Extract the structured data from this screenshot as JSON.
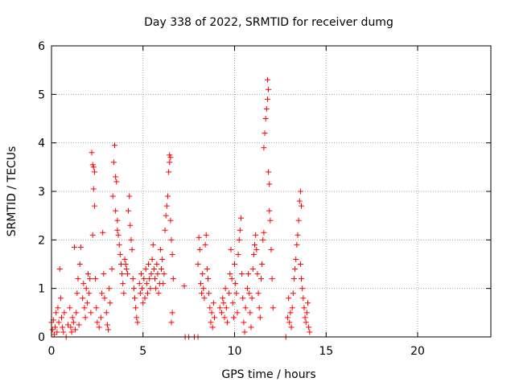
{
  "chart_data": {
    "type": "scatter",
    "title": "Day 338 of 2022, SRMTID for receiver dumg",
    "xlabel": "GPS time / hours",
    "ylabel": "SRMTID / TECUs",
    "xlim": [
      0,
      24
    ],
    "ylim": [
      0,
      6
    ],
    "x_ticks": [
      0,
      5,
      10,
      15,
      20
    ],
    "y_ticks": [
      0,
      1,
      2,
      3,
      4,
      5,
      6
    ],
    "grid": true,
    "marker": "+",
    "marker_color": "#ff0000",
    "series": [
      {
        "points": [
          [
            0.0,
            0.3
          ],
          [
            0.05,
            0.15
          ],
          [
            0.1,
            0.35
          ],
          [
            0.15,
            0.05
          ],
          [
            0.2,
            0.2
          ],
          [
            0.25,
            0.5
          ],
          [
            0.3,
            0.1
          ],
          [
            0.35,
            0.6
          ],
          [
            0.4,
            0.3
          ],
          [
            0.45,
            1.4
          ],
          [
            0.5,
            0.8
          ],
          [
            0.55,
            0.4
          ],
          [
            0.6,
            0.2
          ],
          [
            0.65,
            0.1
          ],
          [
            0.7,
            0.5
          ],
          [
            0.8,
            0.0
          ],
          [
            0.9,
            0.25
          ],
          [
            1.0,
            0.6
          ],
          [
            1.05,
            0.2
          ],
          [
            1.1,
            0.1
          ],
          [
            1.15,
            0.4
          ],
          [
            1.2,
            0.3
          ],
          [
            1.25,
            1.85
          ],
          [
            1.3,
            0.15
          ],
          [
            1.35,
            0.5
          ],
          [
            1.4,
            0.9
          ],
          [
            1.45,
            1.2
          ],
          [
            1.5,
            0.25
          ],
          [
            1.55,
            1.5
          ],
          [
            1.6,
            1.85
          ],
          [
            1.7,
            0.8
          ],
          [
            1.75,
            1.1
          ],
          [
            1.8,
            0.6
          ],
          [
            1.85,
            0.4
          ],
          [
            1.9,
            1.0
          ],
          [
            1.95,
            0.7
          ],
          [
            2.0,
            1.3
          ],
          [
            2.05,
            0.9
          ],
          [
            2.1,
            1.2
          ],
          [
            2.15,
            0.5
          ],
          [
            2.2,
            3.8
          ],
          [
            2.25,
            3.55
          ],
          [
            2.3,
            3.5
          ],
          [
            2.35,
            3.4
          ],
          [
            2.3,
            3.05
          ],
          [
            2.35,
            2.7
          ],
          [
            2.25,
            2.1
          ],
          [
            2.4,
            1.2
          ],
          [
            2.45,
            0.6
          ],
          [
            2.5,
            0.3
          ],
          [
            2.6,
            0.2
          ],
          [
            2.7,
            0.4
          ],
          [
            2.75,
            0.9
          ],
          [
            2.8,
            2.15
          ],
          [
            2.85,
            1.3
          ],
          [
            2.9,
            0.8
          ],
          [
            3.0,
            0.5
          ],
          [
            3.05,
            0.25
          ],
          [
            3.1,
            0.15
          ],
          [
            3.15,
            1.0
          ],
          [
            3.2,
            0.7
          ],
          [
            3.3,
            1.4
          ],
          [
            3.35,
            2.9
          ],
          [
            3.4,
            3.6
          ],
          [
            3.45,
            3.95
          ],
          [
            3.5,
            3.3
          ],
          [
            3.55,
            3.2
          ],
          [
            3.5,
            2.6
          ],
          [
            3.6,
            2.4
          ],
          [
            3.6,
            2.2
          ],
          [
            3.65,
            2.1
          ],
          [
            3.7,
            1.9
          ],
          [
            3.75,
            1.7
          ],
          [
            3.8,
            1.5
          ],
          [
            3.85,
            1.3
          ],
          [
            3.9,
            1.1
          ],
          [
            3.95,
            0.9
          ],
          [
            4.0,
            1.6
          ],
          [
            4.05,
            1.5
          ],
          [
            4.1,
            1.4
          ],
          [
            4.15,
            1.3
          ],
          [
            4.2,
            2.6
          ],
          [
            4.25,
            2.9
          ],
          [
            4.3,
            2.3
          ],
          [
            4.35,
            2.0
          ],
          [
            4.4,
            1.8
          ],
          [
            4.45,
            1.2
          ],
          [
            4.5,
            1.0
          ],
          [
            4.55,
            0.8
          ],
          [
            4.6,
            0.6
          ],
          [
            4.65,
            0.4
          ],
          [
            4.7,
            0.3
          ],
          [
            4.8,
            1.1
          ],
          [
            4.85,
            0.9
          ],
          [
            4.9,
            1.3
          ],
          [
            4.95,
            1.0
          ],
          [
            5.0,
            0.7
          ],
          [
            5.05,
            1.2
          ],
          [
            5.1,
            0.8
          ],
          [
            5.15,
            1.4
          ],
          [
            5.2,
            1.1
          ],
          [
            5.25,
            0.9
          ],
          [
            5.3,
            1.5
          ],
          [
            5.35,
            1.2
          ],
          [
            5.4,
            1.0
          ],
          [
            5.45,
            1.3
          ],
          [
            5.5,
            1.6
          ],
          [
            5.55,
            1.9
          ],
          [
            5.6,
            1.4
          ],
          [
            5.65,
            1.2
          ],
          [
            5.7,
            1.0
          ],
          [
            5.75,
            1.5
          ],
          [
            5.8,
            1.3
          ],
          [
            5.85,
            0.9
          ],
          [
            5.9,
            1.1
          ],
          [
            5.95,
            1.8
          ],
          [
            6.0,
            1.4
          ],
          [
            6.05,
            1.6
          ],
          [
            6.1,
            1.1
          ],
          [
            6.15,
            1.3
          ],
          [
            6.2,
            2.2
          ],
          [
            6.25,
            2.5
          ],
          [
            6.3,
            2.7
          ],
          [
            6.35,
            2.9
          ],
          [
            6.4,
            3.4
          ],
          [
            6.45,
            3.6
          ],
          [
            6.45,
            3.75
          ],
          [
            6.5,
            3.7
          ],
          [
            6.5,
            2.4
          ],
          [
            6.55,
            2.0
          ],
          [
            6.6,
            1.7
          ],
          [
            6.65,
            1.2
          ],
          [
            6.6,
            0.5
          ],
          [
            6.55,
            0.3
          ],
          [
            7.25,
            1.05
          ],
          [
            7.3,
            0.0
          ],
          [
            7.5,
            0.0
          ],
          [
            7.8,
            0.0
          ],
          [
            8.0,
            0.0
          ],
          [
            8.0,
            1.5
          ],
          [
            8.05,
            2.05
          ],
          [
            8.1,
            1.8
          ],
          [
            8.15,
            1.1
          ],
          [
            8.2,
            0.9
          ],
          [
            8.25,
            1.3
          ],
          [
            8.3,
            1.0
          ],
          [
            8.35,
            0.8
          ],
          [
            8.4,
            1.9
          ],
          [
            8.45,
            2.1
          ],
          [
            8.5,
            1.4
          ],
          [
            8.55,
            1.2
          ],
          [
            8.6,
            0.9
          ],
          [
            8.65,
            0.6
          ],
          [
            8.7,
            0.3
          ],
          [
            8.75,
            0.5
          ],
          [
            8.8,
            0.2
          ],
          [
            8.85,
            0.7
          ],
          [
            8.9,
            0.4
          ],
          [
            9.2,
            0.6
          ],
          [
            9.3,
            0.5
          ],
          [
            9.35,
            0.8
          ],
          [
            9.4,
            0.7
          ],
          [
            9.45,
            0.4
          ],
          [
            9.5,
            1.0
          ],
          [
            9.55,
            0.6
          ],
          [
            9.6,
            0.3
          ],
          [
            9.7,
            0.9
          ],
          [
            9.75,
            1.3
          ],
          [
            9.8,
            1.8
          ],
          [
            9.85,
            1.2
          ],
          [
            9.9,
            0.7
          ],
          [
            9.95,
            0.4
          ],
          [
            10.0,
            1.5
          ],
          [
            10.05,
            1.1
          ],
          [
            10.1,
            0.9
          ],
          [
            10.15,
            0.5
          ],
          [
            10.2,
            1.7
          ],
          [
            10.25,
            2.0
          ],
          [
            10.3,
            2.2
          ],
          [
            10.35,
            2.45
          ],
          [
            10.4,
            1.3
          ],
          [
            10.45,
            0.8
          ],
          [
            10.5,
            0.3
          ],
          [
            10.55,
            0.1
          ],
          [
            10.6,
            0.6
          ],
          [
            10.7,
            1.0
          ],
          [
            10.75,
            1.3
          ],
          [
            10.8,
            0.9
          ],
          [
            10.85,
            0.5
          ],
          [
            10.9,
            0.2
          ],
          [
            10.95,
            0.8
          ],
          [
            11.0,
            1.4
          ],
          [
            11.05,
            1.7
          ],
          [
            11.1,
            1.9
          ],
          [
            11.15,
            2.1
          ],
          [
            11.2,
            1.8
          ],
          [
            11.25,
            1.3
          ],
          [
            11.3,
            0.9
          ],
          [
            11.35,
            0.6
          ],
          [
            11.4,
            0.4
          ],
          [
            11.45,
            1.2
          ],
          [
            11.5,
            1.5
          ],
          [
            11.55,
            2.0
          ],
          [
            11.6,
            2.15
          ],
          [
            11.6,
            3.9
          ],
          [
            11.65,
            4.2
          ],
          [
            11.7,
            4.5
          ],
          [
            11.75,
            4.7
          ],
          [
            11.8,
            5.3
          ],
          [
            11.85,
            5.1
          ],
          [
            11.8,
            4.9
          ],
          [
            11.85,
            3.4
          ],
          [
            11.9,
            3.15
          ],
          [
            11.9,
            2.6
          ],
          [
            11.95,
            2.4
          ],
          [
            12.0,
            1.8
          ],
          [
            12.05,
            1.2
          ],
          [
            12.1,
            0.6
          ],
          [
            12.8,
            0.0
          ],
          [
            12.9,
            0.4
          ],
          [
            12.95,
            0.8
          ],
          [
            13.0,
            0.3
          ],
          [
            13.05,
            0.5
          ],
          [
            13.1,
            0.2
          ],
          [
            13.15,
            0.6
          ],
          [
            13.2,
            0.9
          ],
          [
            13.25,
            1.2
          ],
          [
            13.3,
            1.4
          ],
          [
            13.35,
            1.6
          ],
          [
            13.4,
            1.9
          ],
          [
            13.45,
            2.1
          ],
          [
            13.5,
            2.4
          ],
          [
            13.55,
            2.8
          ],
          [
            13.6,
            3.0
          ],
          [
            13.65,
            2.7
          ],
          [
            13.6,
            1.5
          ],
          [
            13.65,
            1.2
          ],
          [
            13.7,
            1.0
          ],
          [
            13.75,
            0.8
          ],
          [
            13.8,
            0.6
          ],
          [
            13.85,
            0.4
          ],
          [
            13.9,
            0.3
          ],
          [
            13.95,
            0.5
          ],
          [
            14.0,
            0.7
          ],
          [
            14.05,
            0.2
          ],
          [
            14.1,
            0.1
          ]
        ]
      }
    ]
  }
}
